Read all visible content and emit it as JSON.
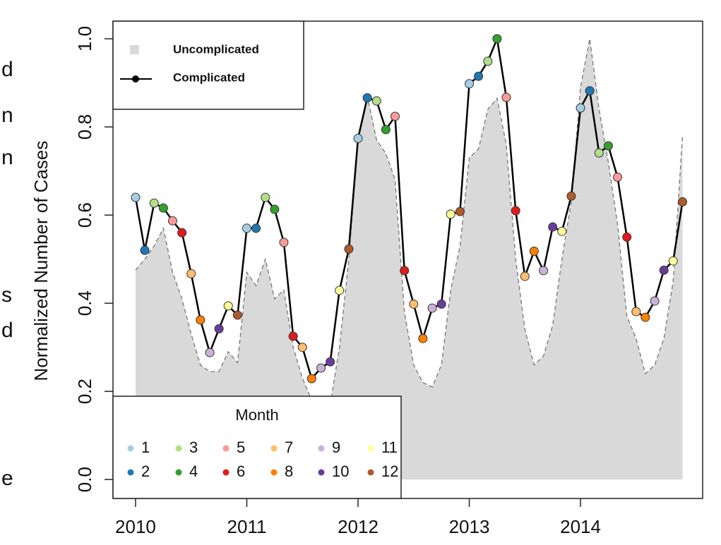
{
  "chart_data": {
    "type": "line",
    "y_label": "Normalized Number of Cases",
    "x": [
      2010,
      2010.083,
      2010.167,
      2010.25,
      2010.333,
      2010.417,
      2010.5,
      2010.583,
      2010.667,
      2010.75,
      2010.833,
      2010.917,
      2011,
      2011.083,
      2011.167,
      2011.25,
      2011.333,
      2011.417,
      2011.5,
      2011.583,
      2011.667,
      2011.75,
      2011.833,
      2011.917,
      2012,
      2012.083,
      2012.167,
      2012.25,
      2012.333,
      2012.417,
      2012.5,
      2012.583,
      2012.667,
      2012.75,
      2012.833,
      2012.917,
      2013,
      2013.083,
      2013.167,
      2013.25,
      2013.333,
      2013.417,
      2013.5,
      2013.583,
      2013.667,
      2013.75,
      2013.833,
      2013.917,
      2014,
      2014.083,
      2014.167,
      2014.25,
      2014.333,
      2014.417,
      2014.5,
      2014.583,
      2014.667,
      2014.75,
      2014.833,
      2014.917
    ],
    "series": [
      {
        "name": "Uncomplicated",
        "color": "#d9d9d9",
        "values": [
          0.475,
          0.5,
          0.53,
          0.57,
          0.47,
          0.41,
          0.33,
          0.26,
          0.245,
          0.245,
          0.29,
          0.265,
          0.47,
          0.44,
          0.5,
          0.41,
          0.43,
          0.3,
          0.23,
          0.18,
          0.17,
          0.17,
          0.3,
          0.5,
          0.77,
          0.87,
          0.77,
          0.74,
          0.68,
          0.38,
          0.26,
          0.22,
          0.21,
          0.26,
          0.43,
          0.53,
          0.73,
          0.75,
          0.84,
          0.865,
          0.76,
          0.5,
          0.34,
          0.26,
          0.28,
          0.35,
          0.5,
          0.63,
          0.89,
          1.0,
          0.84,
          0.72,
          0.58,
          0.37,
          0.32,
          0.24,
          0.26,
          0.32,
          0.45,
          0.78
        ]
      },
      {
        "name": "Complicated",
        "color": "#000000",
        "values": [
          0.64,
          0.52,
          0.627,
          0.616,
          0.587,
          0.56,
          0.467,
          0.362,
          0.288,
          0.342,
          0.394,
          0.373,
          0.57,
          0.57,
          0.64,
          0.613,
          0.538,
          0.325,
          0.3,
          0.229,
          0.253,
          0.267,
          0.429,
          0.523,
          0.774,
          0.866,
          0.859,
          0.794,
          0.824,
          0.474,
          0.398,
          0.32,
          0.389,
          0.398,
          0.602,
          0.608,
          0.898,
          0.915,
          0.949,
          1.0,
          0.867,
          0.61,
          0.461,
          0.518,
          0.474,
          0.573,
          0.563,
          0.643,
          0.843,
          0.882,
          0.741,
          0.757,
          0.686,
          0.55,
          0.381,
          0.368,
          0.405,
          0.475,
          0.496,
          0.63
        ]
      }
    ],
    "month_legend_title": "Month",
    "months": [
      1,
      2,
      3,
      4,
      5,
      6,
      7,
      8,
      9,
      10,
      11,
      12
    ],
    "month_colors": [
      "#a6cee3",
      "#1f78b4",
      "#b2df8a",
      "#33a02c",
      "#fb9a99",
      "#e31a1c",
      "#fdbf6f",
      "#ff7f00",
      "#cab2d6",
      "#6a3d9a",
      "#ffff99",
      "#b15928"
    ],
    "xlim": [
      2009.797,
      2015.098
    ],
    "ylim": [
      -0.043,
      1.04
    ],
    "xticks": [
      2010,
      2011,
      2012,
      2013,
      2014
    ],
    "yticks": [
      {
        "value": 0,
        "label": "0.0"
      },
      0.2,
      0.4,
      0.6,
      0.8,
      {
        "value": 1,
        "label": "1.0"
      }
    ],
    "margin_fragments": [
      "d",
      "n",
      "n",
      "s",
      "d",
      "e"
    ]
  }
}
